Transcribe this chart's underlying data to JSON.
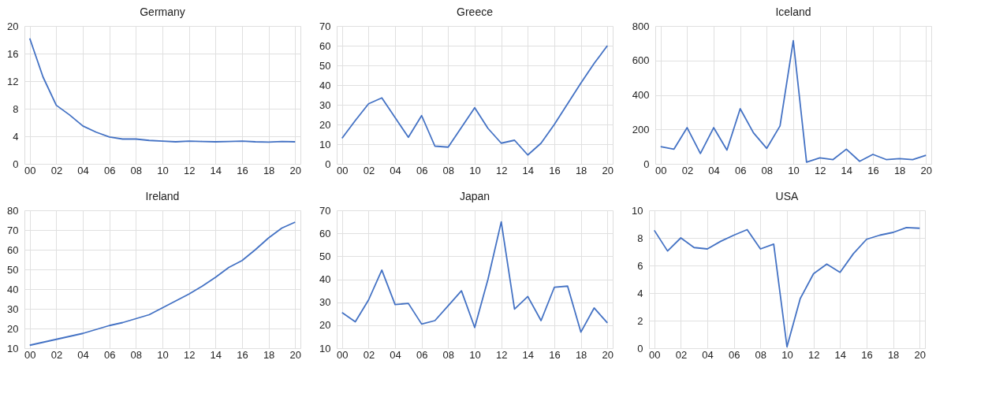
{
  "chart_data": [
    {
      "type": "line",
      "title": "Germany",
      "categories": [
        "00",
        null,
        "02",
        null,
        "04",
        null,
        "06",
        null,
        "08",
        null,
        "10",
        null,
        "12",
        null,
        "14",
        null,
        "16",
        null,
        "18",
        null,
        "20"
      ],
      "color": "#4472c4",
      "ylim": [
        0,
        20
      ],
      "yticks": [
        0,
        4,
        8,
        12,
        16,
        20
      ],
      "grid": true,
      "values": [
        18.2,
        12.6,
        8.5,
        7.1,
        5.5,
        4.6,
        3.9,
        3.6,
        3.6,
        3.4,
        3.3,
        3.2,
        3.3,
        3.25,
        3.2,
        3.25,
        3.3,
        3.2,
        3.15,
        3.25,
        3.2
      ]
    },
    {
      "type": "line",
      "title": "Greece",
      "categories": [
        "00",
        null,
        "02",
        null,
        "04",
        null,
        "06",
        null,
        "08",
        null,
        "10",
        null,
        "12",
        null,
        "14",
        null,
        "16",
        null,
        "18",
        null,
        "20"
      ],
      "color": "#4472c4",
      "ylim": [
        0,
        70
      ],
      "yticks": [
        0,
        10,
        20,
        30,
        40,
        50,
        60,
        70
      ],
      "grid": true,
      "values": [
        13,
        22,
        30.5,
        33.5,
        23.5,
        13.5,
        24.5,
        9,
        8.5,
        18.5,
        28.5,
        18,
        10.5,
        12,
        4.5,
        10.5,
        20,
        30.5,
        41,
        51,
        60
      ]
    },
    {
      "type": "line",
      "title": "Iceland",
      "categories": [
        "00",
        null,
        "02",
        null,
        "04",
        null,
        "06",
        null,
        "08",
        null,
        "10",
        null,
        "12",
        null,
        "14",
        null,
        "16",
        null,
        "18",
        null,
        "20"
      ],
      "color": "#4472c4",
      "ylim": [
        0,
        800
      ],
      "yticks": [
        0,
        200,
        400,
        600,
        800
      ],
      "grid": true,
      "values": [
        100,
        85,
        210,
        60,
        210,
        80,
        320,
        180,
        90,
        220,
        715,
        10,
        35,
        25,
        85,
        15,
        55,
        25,
        30,
        25,
        50
      ]
    },
    {
      "type": "line",
      "title": "Ireland",
      "categories": [
        "00",
        null,
        "02",
        null,
        "04",
        null,
        "06",
        null,
        "08",
        null,
        "10",
        null,
        "12",
        null,
        "14",
        null,
        "16",
        null,
        "18",
        null,
        "20"
      ],
      "color": "#4472c4",
      "ylim": [
        10,
        80
      ],
      "yticks": [
        10,
        20,
        30,
        40,
        50,
        60,
        70,
        80
      ],
      "grid": true,
      "values": [
        11.5,
        13,
        14.5,
        16,
        17.5,
        19.5,
        21.5,
        23,
        25,
        27,
        30.5,
        34,
        37.5,
        41.5,
        46,
        51,
        54.5,
        60,
        66,
        71,
        74
      ]
    },
    {
      "type": "line",
      "title": "Japan",
      "categories": [
        "00",
        null,
        "02",
        null,
        "04",
        null,
        "06",
        null,
        "08",
        null,
        "10",
        null,
        "12",
        null,
        "14",
        null,
        "16",
        null,
        "18",
        null,
        "20"
      ],
      "color": "#4472c4",
      "ylim": [
        10,
        70
      ],
      "yticks": [
        10,
        20,
        30,
        40,
        50,
        60,
        70
      ],
      "grid": true,
      "values": [
        25.5,
        21.5,
        31,
        44,
        29,
        29.5,
        20.5,
        22,
        28.5,
        35,
        19,
        40,
        65,
        27,
        32.5,
        22,
        36.5,
        37,
        17,
        27.5,
        21
      ]
    },
    {
      "type": "line",
      "title": "USA",
      "categories": [
        "00",
        null,
        "02",
        null,
        "04",
        null,
        "06",
        null,
        "08",
        null,
        "10",
        null,
        "12",
        null,
        "14",
        null,
        "16",
        null,
        "18",
        null,
        "20"
      ],
      "color": "#4472c4",
      "ylim": [
        0,
        10
      ],
      "yticks": [
        0,
        2,
        4,
        6,
        8,
        10
      ],
      "grid": true,
      "values": [
        8.55,
        7.05,
        8,
        7.3,
        7.2,
        7.75,
        8.2,
        8.6,
        7.2,
        7.55,
        0.1,
        3.6,
        5.4,
        6.1,
        5.5,
        6.85,
        7.9,
        8.2,
        8.4,
        8.75,
        8.7
      ]
    }
  ]
}
